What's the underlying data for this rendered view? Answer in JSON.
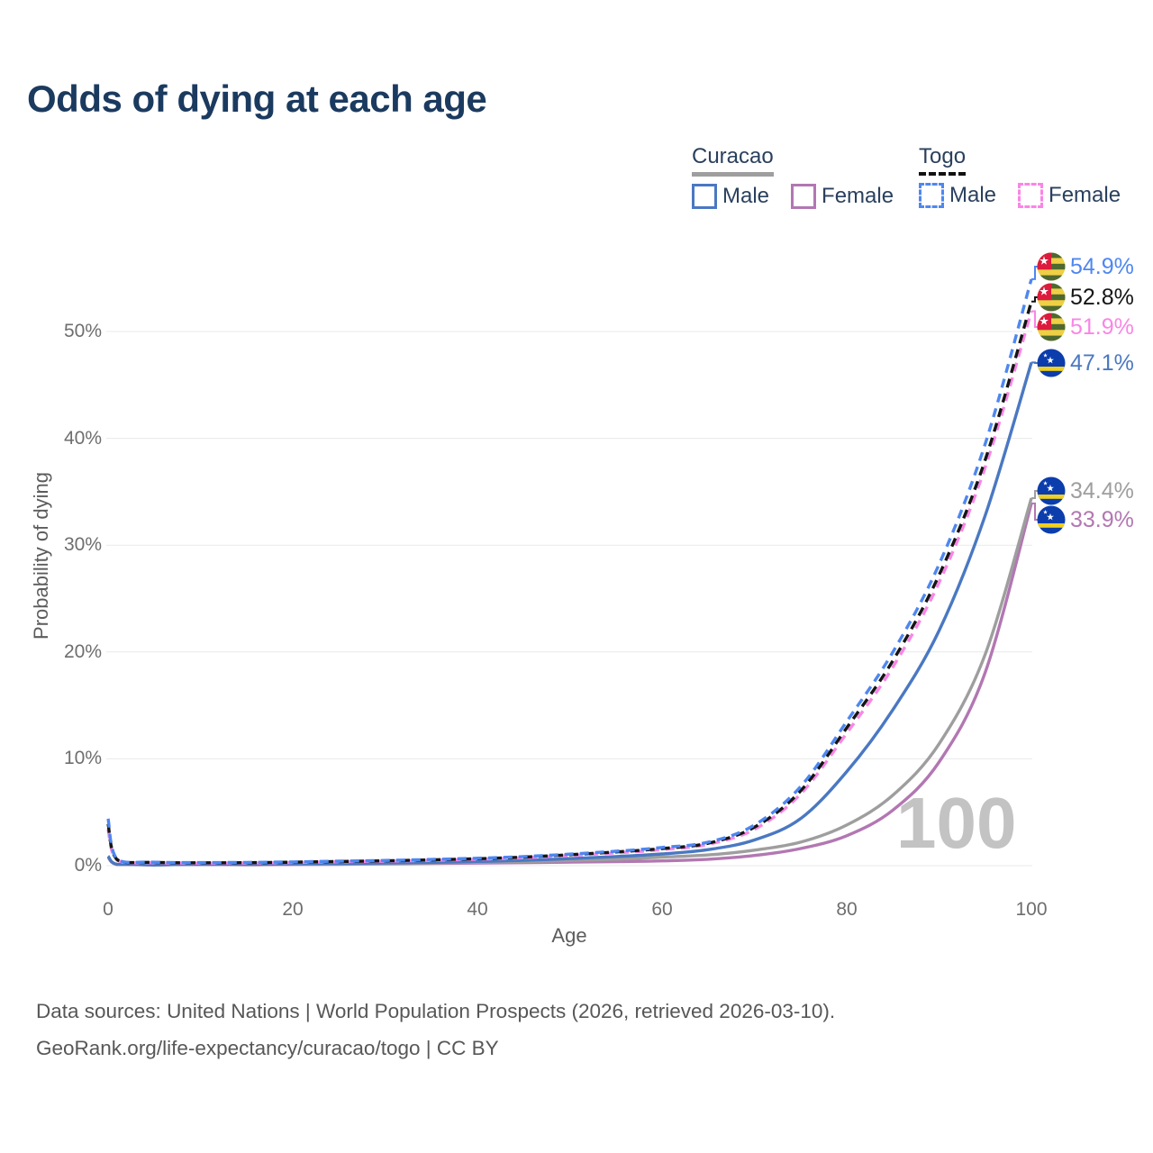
{
  "title": "Odds of dying at each age",
  "legend": {
    "groups": [
      {
        "name": "Curacao",
        "line_style": "solid",
        "underline_color": "#9e9e9e",
        "items": [
          {
            "label": "Male",
            "color": "#4a78c2"
          },
          {
            "label": "Female",
            "color": "#b277b2"
          }
        ]
      },
      {
        "name": "Togo",
        "line_style": "dashed",
        "underline_color": "#111111",
        "items": [
          {
            "label": "Male",
            "color": "#4e87f0"
          },
          {
            "label": "Female",
            "color": "#fa85e6"
          }
        ]
      }
    ]
  },
  "axes": {
    "y_title": "Probability of dying",
    "x_title": "Age",
    "y_ticks": [
      {
        "label": "0%",
        "value": 0
      },
      {
        "label": "10%",
        "value": 10
      },
      {
        "label": "20%",
        "value": 20
      },
      {
        "label": "30%",
        "value": 30
      },
      {
        "label": "40%",
        "value": 40
      },
      {
        "label": "50%",
        "value": 50
      }
    ],
    "x_ticks": [
      {
        "label": "0",
        "value": 0
      },
      {
        "label": "20",
        "value": 20
      },
      {
        "label": "40",
        "value": 40
      },
      {
        "label": "60",
        "value": 60
      },
      {
        "label": "80",
        "value": 80
      },
      {
        "label": "100",
        "value": 100
      }
    ]
  },
  "watermark": "100",
  "footer": {
    "line1": "Data sources: United Nations | World Population Prospects (2026, retrieved 2026-03-10).",
    "line2": "GeoRank.org/life-expectancy/curacao/togo | CC BY"
  },
  "colors": {
    "gridline": "#e9e9e9",
    "title_text": "#1b3a5f",
    "axis_text": "#6e6e6e",
    "footer_text": "#575757",
    "watermark_text": "#c3c3c3"
  },
  "chart_data": {
    "type": "line",
    "title": "Odds of dying at each age",
    "xlabel": "Age",
    "ylabel": "Probability of dying",
    "xlim": [
      0,
      100
    ],
    "ylim_pct": [
      0,
      57
    ],
    "grid": "horizontal",
    "x_ages": [
      0,
      1,
      5,
      15,
      25,
      35,
      45,
      55,
      60,
      65,
      70,
      75,
      80,
      85,
      90,
      95,
      100
    ],
    "series": [
      {
        "name": "Curacao Female",
        "country": "Curacao",
        "sex": "Female",
        "style": "solid",
        "color": "#b277b2",
        "end_label": "33.9%",
        "end_value_pct": 33.9,
        "values_pct": [
          0.8,
          0.1,
          0.05,
          0.08,
          0.13,
          0.2,
          0.28,
          0.38,
          0.45,
          0.6,
          0.95,
          1.6,
          2.8,
          5.2,
          9.7,
          18.1,
          33.9
        ]
      },
      {
        "name": "Curacao",
        "country": "Curacao",
        "sex": "Both",
        "style": "solid",
        "color": "#9e9e9e",
        "end_label": "34.4%",
        "end_value_pct": 34.4,
        "values_pct": [
          0.85,
          0.11,
          0.055,
          0.1,
          0.17,
          0.25,
          0.38,
          0.6,
          0.8,
          1.0,
          1.45,
          2.2,
          3.8,
          6.6,
          11.4,
          19.8,
          34.4
        ]
      },
      {
        "name": "Curacao Male",
        "country": "Curacao",
        "sex": "Male",
        "style": "solid",
        "color": "#4a78c2",
        "end_label": "47.1%",
        "end_value_pct": 47.1,
        "values_pct": [
          0.9,
          0.12,
          0.06,
          0.12,
          0.2,
          0.3,
          0.5,
          0.85,
          1.1,
          1.5,
          2.4,
          4.4,
          8.8,
          14.6,
          22.0,
          32.8,
          47.1
        ]
      },
      {
        "name": "Togo Female",
        "country": "Togo",
        "sex": "Female",
        "style": "dashed",
        "color": "#fa85e6",
        "end_label": "51.9%",
        "end_value_pct": 51.9,
        "values_pct": [
          3.4,
          0.5,
          0.27,
          0.25,
          0.36,
          0.5,
          0.74,
          1.2,
          1.5,
          2.0,
          3.4,
          6.7,
          12.4,
          18.6,
          26.5,
          37.3,
          51.9
        ]
      },
      {
        "name": "Togo",
        "country": "Togo",
        "sex": "Both",
        "style": "dashed",
        "color": "#151515",
        "end_label": "52.8%",
        "end_value_pct": 52.8,
        "values_pct": [
          3.9,
          0.55,
          0.3,
          0.28,
          0.39,
          0.54,
          0.8,
          1.28,
          1.6,
          2.1,
          3.6,
          7.0,
          12.9,
          19.2,
          27.2,
          38.0,
          52.8
        ]
      },
      {
        "name": "Togo Male",
        "country": "Togo",
        "sex": "Male",
        "style": "dashed",
        "color": "#4e87f0",
        "end_label": "54.9%",
        "end_value_pct": 54.9,
        "values_pct": [
          4.4,
          0.6,
          0.32,
          0.3,
          0.42,
          0.58,
          0.85,
          1.35,
          1.7,
          2.2,
          3.8,
          7.4,
          13.5,
          20.0,
          28.2,
          39.5,
          54.9
        ]
      }
    ]
  }
}
